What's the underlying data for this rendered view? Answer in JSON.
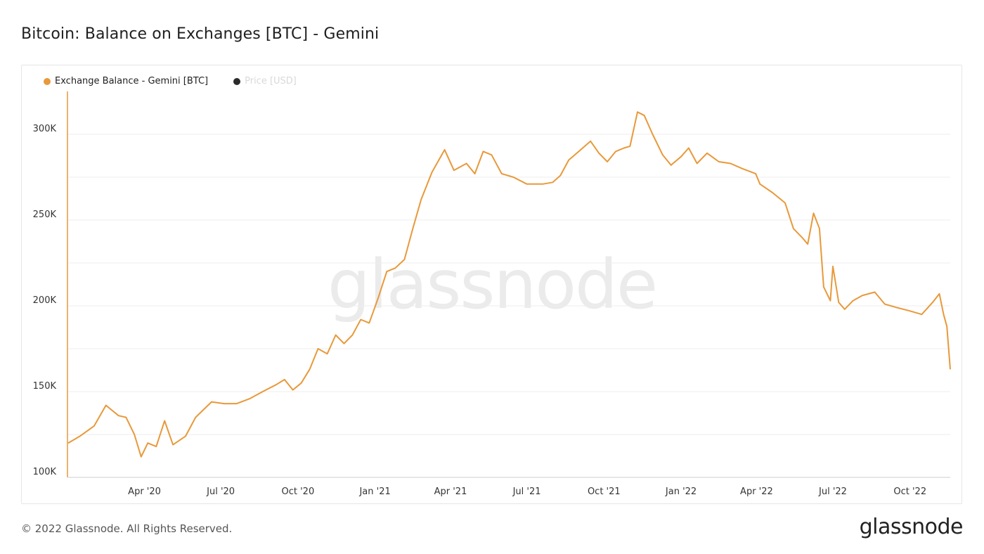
{
  "header": {
    "title": "Bitcoin: Balance on Exchanges [BTC] - Gemini"
  },
  "legend": {
    "items": [
      {
        "label": "Exchange Balance - Gemini [BTC]",
        "color": "#e8993a",
        "active": true
      },
      {
        "label": "Price [USD]",
        "color": "#2b2b2b",
        "active": false
      }
    ]
  },
  "watermark": "glassnode",
  "footer": {
    "copyright": "© 2022 Glassnode. All Rights Reserved.",
    "brand": "glassnode"
  },
  "chart_data": {
    "type": "line",
    "title": "Bitcoin: Balance on Exchanges [BTC] - Gemini",
    "xlabel": "",
    "ylabel": "",
    "ylim": [
      100000,
      325000
    ],
    "y_ticks": [
      100000,
      150000,
      200000,
      250000,
      300000
    ],
    "y_tick_labels": [
      "100K",
      "150K",
      "200K",
      "250K",
      "300K"
    ],
    "x_ticks": [
      "2020-04-01",
      "2020-07-01",
      "2020-10-01",
      "2021-01-01",
      "2021-04-01",
      "2021-07-01",
      "2021-10-01",
      "2022-01-01",
      "2022-04-01",
      "2022-07-01",
      "2022-10-01"
    ],
    "x_tick_labels": [
      "Apr '20",
      "Jul '20",
      "Oct '20",
      "Jan '21",
      "Apr '21",
      "Jul '21",
      "Oct '21",
      "Jan '22",
      "Apr '22",
      "Jul '22",
      "Oct '22"
    ],
    "xlim": [
      "2020-01-01",
      "2022-11-18"
    ],
    "grid": true,
    "legend_position": "top-left",
    "series": [
      {
        "name": "Exchange Balance - Gemini [BTC]",
        "color": "#e8993a",
        "points": [
          [
            "2020-01-01",
            120000
          ],
          [
            "2020-01-15",
            124000
          ],
          [
            "2020-02-01",
            130000
          ],
          [
            "2020-02-15",
            142000
          ],
          [
            "2020-03-01",
            136000
          ],
          [
            "2020-03-10",
            135000
          ],
          [
            "2020-03-20",
            125000
          ],
          [
            "2020-03-28",
            112000
          ],
          [
            "2020-04-05",
            120000
          ],
          [
            "2020-04-15",
            118000
          ],
          [
            "2020-04-25",
            133000
          ],
          [
            "2020-05-05",
            119000
          ],
          [
            "2020-05-20",
            124000
          ],
          [
            "2020-06-01",
            135000
          ],
          [
            "2020-06-20",
            144000
          ],
          [
            "2020-07-05",
            143000
          ],
          [
            "2020-07-20",
            143000
          ],
          [
            "2020-08-05",
            146000
          ],
          [
            "2020-08-20",
            150000
          ],
          [
            "2020-09-05",
            154000
          ],
          [
            "2020-09-15",
            157000
          ],
          [
            "2020-09-25",
            151000
          ],
          [
            "2020-10-05",
            155000
          ],
          [
            "2020-10-15",
            163000
          ],
          [
            "2020-10-25",
            175000
          ],
          [
            "2020-11-05",
            172000
          ],
          [
            "2020-11-15",
            183000
          ],
          [
            "2020-11-25",
            178000
          ],
          [
            "2020-12-05",
            183000
          ],
          [
            "2020-12-15",
            192000
          ],
          [
            "2020-12-25",
            190000
          ],
          [
            "2021-01-05",
            205000
          ],
          [
            "2021-01-15",
            220000
          ],
          [
            "2021-01-25",
            222000
          ],
          [
            "2021-02-05",
            227000
          ],
          [
            "2021-02-15",
            245000
          ],
          [
            "2021-02-25",
            262000
          ],
          [
            "2021-03-10",
            278000
          ],
          [
            "2021-03-25",
            291000
          ],
          [
            "2021-04-05",
            279000
          ],
          [
            "2021-04-20",
            283000
          ],
          [
            "2021-04-30",
            277000
          ],
          [
            "2021-05-10",
            290000
          ],
          [
            "2021-05-20",
            288000
          ],
          [
            "2021-06-01",
            277000
          ],
          [
            "2021-06-15",
            275000
          ],
          [
            "2021-07-01",
            271000
          ],
          [
            "2021-07-20",
            271000
          ],
          [
            "2021-08-01",
            272000
          ],
          [
            "2021-08-10",
            276000
          ],
          [
            "2021-08-20",
            285000
          ],
          [
            "2021-09-01",
            290000
          ],
          [
            "2021-09-15",
            296000
          ],
          [
            "2021-09-25",
            289000
          ],
          [
            "2021-10-05",
            284000
          ],
          [
            "2021-10-15",
            290000
          ],
          [
            "2021-10-25",
            292000
          ],
          [
            "2021-11-01",
            293000
          ],
          [
            "2021-11-10",
            313000
          ],
          [
            "2021-11-18",
            311000
          ],
          [
            "2021-11-28",
            300000
          ],
          [
            "2021-12-10",
            288000
          ],
          [
            "2021-12-20",
            282000
          ],
          [
            "2022-01-01",
            287000
          ],
          [
            "2022-01-10",
            292000
          ],
          [
            "2022-01-20",
            283000
          ],
          [
            "2022-02-01",
            289000
          ],
          [
            "2022-02-15",
            284000
          ],
          [
            "2022-03-01",
            283000
          ],
          [
            "2022-03-15",
            280000
          ],
          [
            "2022-03-31",
            277000
          ],
          [
            "2022-04-05",
            271000
          ],
          [
            "2022-04-20",
            266000
          ],
          [
            "2022-05-05",
            260000
          ],
          [
            "2022-05-15",
            245000
          ],
          [
            "2022-05-25",
            240000
          ],
          [
            "2022-06-01",
            236000
          ],
          [
            "2022-06-08",
            254000
          ],
          [
            "2022-06-15",
            245000
          ],
          [
            "2022-06-20",
            211000
          ],
          [
            "2022-06-28",
            203000
          ],
          [
            "2022-07-01",
            223000
          ],
          [
            "2022-07-08",
            202000
          ],
          [
            "2022-07-15",
            198000
          ],
          [
            "2022-07-25",
            203000
          ],
          [
            "2022-08-05",
            206000
          ],
          [
            "2022-08-20",
            208000
          ],
          [
            "2022-09-01",
            201000
          ],
          [
            "2022-09-15",
            199000
          ],
          [
            "2022-10-01",
            197000
          ],
          [
            "2022-10-15",
            195000
          ],
          [
            "2022-10-28",
            202000
          ],
          [
            "2022-11-05",
            207000
          ],
          [
            "2022-11-10",
            195000
          ],
          [
            "2022-11-14",
            188000
          ],
          [
            "2022-11-18",
            163000
          ]
        ]
      }
    ]
  }
}
